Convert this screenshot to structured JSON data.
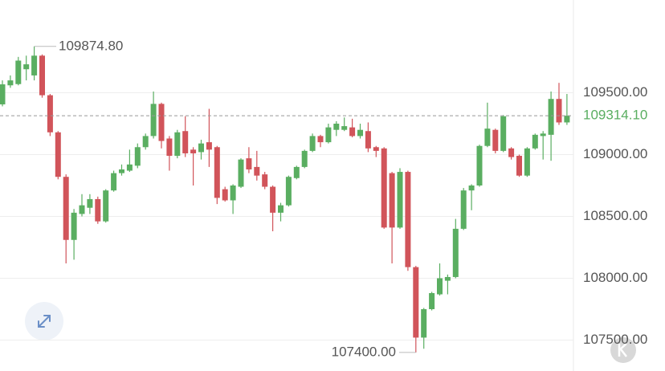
{
  "chart_data": {
    "type": "candlestick",
    "up_color": "#5aae61",
    "down_color": "#d1545a",
    "ylim": [
      107250,
      110250
    ],
    "yticks": [
      {
        "value": 107500,
        "label": "107500.00"
      },
      {
        "value": 108000,
        "label": "108000.00"
      },
      {
        "value": 108500,
        "label": "108500.00"
      },
      {
        "value": 109000,
        "label": "109000.00"
      },
      {
        "value": 109500,
        "label": "109500.00"
      }
    ],
    "grid": true,
    "max_label": {
      "value": 109874.8,
      "label": "109874.80"
    },
    "min_label": {
      "value": 107400,
      "label": "107400.00"
    },
    "last_price": {
      "value": 109314.1,
      "label": "109314.10"
    },
    "open": [
      109406,
      109560,
      109570,
      109690,
      109640,
      109800,
      109480,
      109180,
      108820,
      108310,
      108520,
      108570,
      108640,
      108460,
      108710,
      108850,
      108870,
      108910,
      109060,
      109150,
      109410,
      109130,
      108990,
      109190,
      109040,
      109020,
      109100,
      109060,
      108720,
      108630,
      108740,
      108970,
      108900,
      108840,
      108740,
      108530,
      108590,
      108810,
      108900,
      109030,
      109150,
      109100,
      109200,
      109200,
      109220,
      109150,
      109190,
      109060,
      109050,
      108850,
      108410,
      108860,
      108090,
      107520,
      107750,
      107870,
      107980,
      108010,
      108400,
      108710,
      108750,
      109070,
      109200,
      109030,
      109050,
      108990,
      108830,
      109050,
      109150,
      109160,
      109450,
      109260
    ],
    "high": [
      109600,
      109640,
      109790,
      109800,
      109874.8,
      109810,
      109490,
      109190,
      108840,
      108560,
      108680,
      108680,
      108660,
      108720,
      108870,
      108920,
      109040,
      109090,
      109170,
      109510,
      109420,
      109150,
      109200,
      109310,
      109060,
      109120,
      109370,
      109070,
      108740,
      108760,
      108970,
      109060,
      109030,
      108860,
      108750,
      108610,
      108830,
      108910,
      109040,
      109170,
      109160,
      109250,
      109270,
      109300,
      109290,
      109250,
      109260,
      109070,
      109060,
      108860,
      108890,
      108870,
      108100,
      107760,
      107890,
      108120,
      108030,
      108480,
      108730,
      108760,
      109080,
      109420,
      109210,
      109320,
      109060,
      109000,
      109060,
      109170,
      109190,
      109510,
      109580,
      109490
    ],
    "low": [
      109390,
      109540,
      109560,
      109600,
      109600,
      109460,
      109150,
      108800,
      108120,
      108150,
      108500,
      108520,
      108440,
      108450,
      108700,
      108830,
      108860,
      108890,
      109040,
      109130,
      109050,
      108870,
      108970,
      108980,
      108750,
      108960,
      108900,
      108600,
      108620,
      108520,
      108730,
      108850,
      108790,
      108720,
      108380,
      108460,
      108580,
      108800,
      108890,
      109020,
      109060,
      109090,
      109150,
      109190,
      109140,
      109130,
      109020,
      108980,
      108400,
      108120,
      108400,
      108060,
      107400,
      107430,
      107740,
      107860,
      107870,
      108000,
      108390,
      108550,
      108740,
      109060,
      109010,
      109020,
      108960,
      108820,
      108820,
      109040,
      108960,
      108950,
      109240,
      109240
    ],
    "close": [
      109568,
      109600,
      109760,
      109730,
      109800,
      109480,
      109180,
      108820,
      108310,
      108530,
      108590,
      108640,
      108460,
      108710,
      108850,
      108880,
      108920,
      109060,
      109150,
      109410,
      109110,
      108990,
      109180,
      109010,
      109010,
      109090,
      109040,
      108650,
      108630,
      108750,
      108960,
      108880,
      108830,
      108740,
      108530,
      108590,
      108820,
      108900,
      109030,
      109150,
      109100,
      109220,
      109250,
      109230,
      109150,
      109200,
      109050,
      109030,
      108410,
      108410,
      108860,
      108090,
      107520,
      107750,
      107880,
      108000,
      108010,
      108400,
      108710,
      108750,
      109070,
      109210,
      109030,
      109310,
      108980,
      108830,
      109050,
      109160,
      109170,
      109450,
      109260,
      109314.1
    ]
  }
}
